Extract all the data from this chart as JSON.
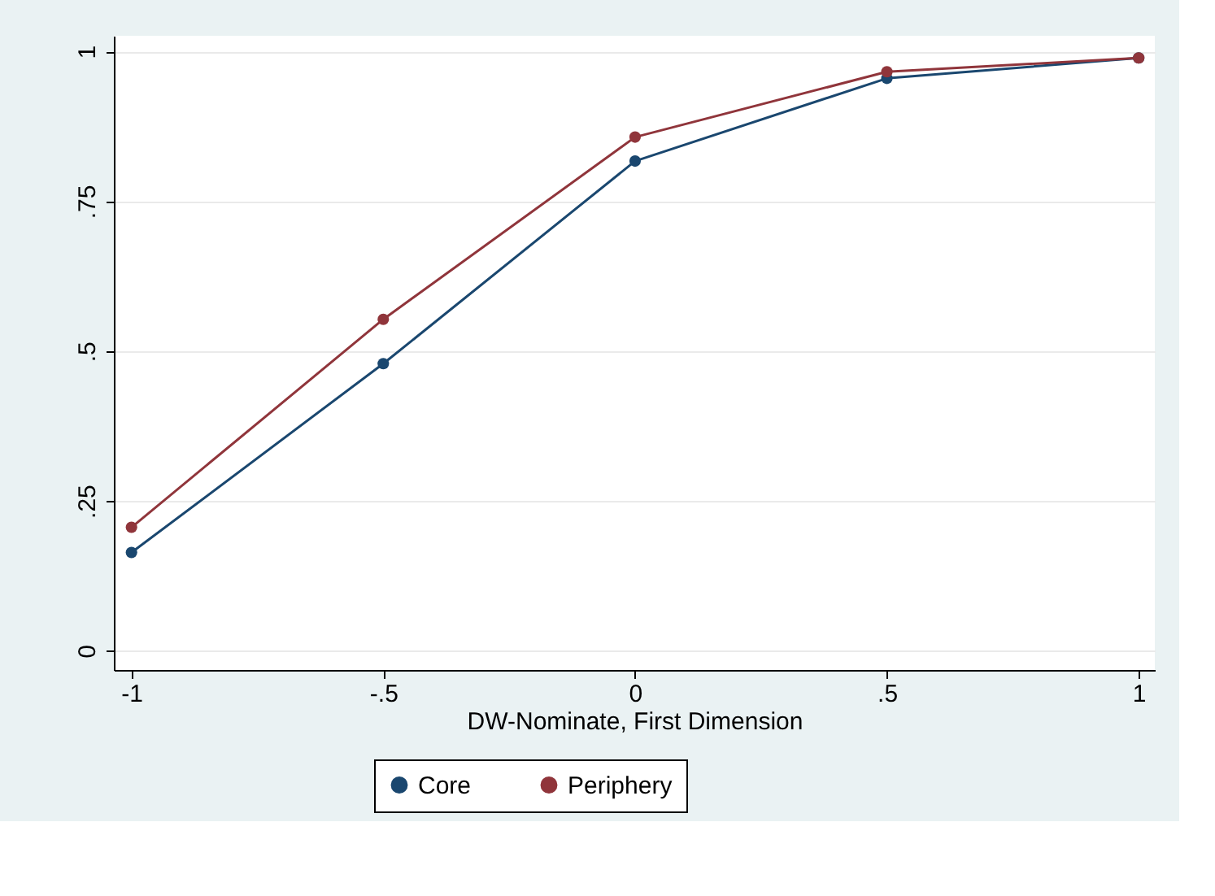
{
  "chart_data": {
    "type": "line",
    "xlabel": "DW-Nominate, First Dimension",
    "x": [
      -1,
      -0.5,
      0,
      0.5,
      1
    ],
    "series": [
      {
        "name": "Core",
        "color": "#1a476f",
        "values": [
          0.164,
          0.479,
          0.817,
          0.955,
          0.989
        ]
      },
      {
        "name": "Periphery",
        "color": "#90353b",
        "values": [
          0.206,
          0.553,
          0.857,
          0.966,
          0.989
        ]
      }
    ],
    "xlim": [
      -1.035,
      1.032
    ],
    "ylim": [
      -0.032,
      1.026
    ],
    "xticks": [
      -1,
      {
        "value": -0.5,
        "label": "-.5"
      },
      0,
      {
        "value": 0.5,
        "label": ".5"
      },
      1
    ],
    "yticks": [
      0,
      {
        "value": 0.25,
        "label": ".25"
      },
      {
        "value": 0.5,
        "label": ".5"
      },
      {
        "value": 0.75,
        "label": ".75"
      },
      1
    ],
    "grid": "y",
    "legend": "bottom",
    "marker": "circle",
    "line_style": "solid"
  }
}
